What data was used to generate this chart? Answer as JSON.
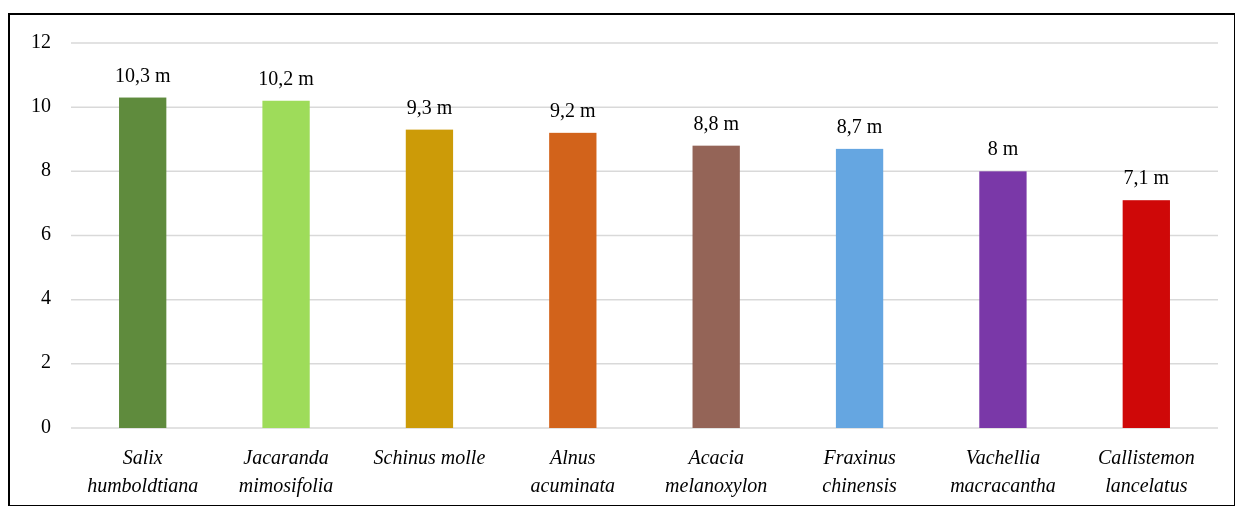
{
  "chart_data": {
    "type": "bar",
    "categories": [
      "Salix\nhumboldtiana",
      "Jacaranda\nmimosifolia",
      "Schinus molle",
      "Alnus\nacuminata",
      "Acacia\nmelanoxylon",
      "Fraxinus\nchinensis",
      "Vachellia\nmacracantha",
      "Callistemon\nlancelatus"
    ],
    "values": [
      10.3,
      10.2,
      9.3,
      9.2,
      8.8,
      8.7,
      8,
      7.1
    ],
    "colors": [
      "#5f8b3d",
      "#9edc5a",
      "#cc9b08",
      "#d2631b",
      "#946457",
      "#65a6e1",
      "#7a38a8",
      "#cf0808"
    ],
    "value_labels": [
      "10,3 m",
      "10,2 m",
      "9,3 m",
      "9,2 m",
      "8,8 m",
      "8,7 m",
      "8 m",
      "7,1 m"
    ],
    "ylim": [
      0,
      12
    ],
    "yticks": [
      0,
      2,
      4,
      6,
      8,
      10,
      12
    ],
    "grid": "y"
  }
}
